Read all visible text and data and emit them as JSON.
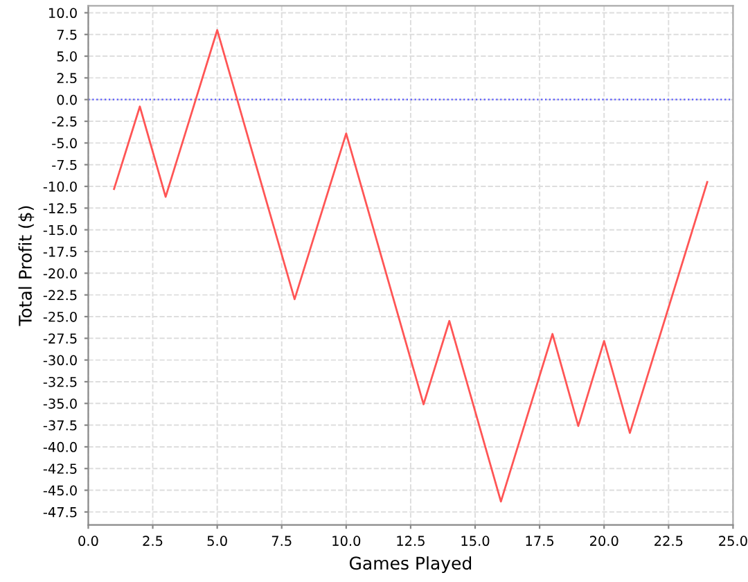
{
  "chart_data": {
    "type": "line",
    "xlabel": "Games Played",
    "ylabel": "Total Profit ($)",
    "x": [
      1,
      2,
      3,
      5,
      8,
      10,
      13,
      14,
      16,
      18,
      19,
      20,
      21,
      24
    ],
    "series": [
      {
        "color": "#ff5555",
        "values": [
          -10.3,
          -0.8,
          -11.2,
          8.0,
          -23.0,
          -3.9,
          -35.1,
          -25.5,
          -46.3,
          -27.0,
          -37.6,
          -27.8,
          -38.4,
          -9.5
        ]
      }
    ],
    "xlim": [
      0,
      25
    ],
    "xticks": [
      {
        "value": 0,
        "label": "0.0"
      },
      {
        "value": 2.5,
        "label": "2.5"
      },
      {
        "value": 5,
        "label": "5.0"
      },
      {
        "value": 7.5,
        "label": "7.5"
      },
      {
        "value": 10,
        "label": "10.0"
      },
      {
        "value": 12.5,
        "label": "12.5"
      },
      {
        "value": 15,
        "label": "15.0"
      },
      {
        "value": 17.5,
        "label": "17.5"
      },
      {
        "value": 20,
        "label": "20.0"
      },
      {
        "value": 22.5,
        "label": "22.5"
      },
      {
        "value": 25,
        "label": "25.0"
      }
    ],
    "ylim": [
      -49,
      10.8
    ],
    "yticks": [
      {
        "value": 10,
        "label": "10.0"
      },
      {
        "value": 7.5,
        "label": "7.5"
      },
      {
        "value": 5,
        "label": "5.0"
      },
      {
        "value": 2.5,
        "label": "2.5"
      },
      {
        "value": 0,
        "label": "0.0"
      },
      {
        "value": -2.5,
        "label": "-2.5"
      },
      {
        "value": -5,
        "label": "-5.0"
      },
      {
        "value": -7.5,
        "label": "-7.5"
      },
      {
        "value": -10,
        "label": "-10.0"
      },
      {
        "value": -12.5,
        "label": "-12.5"
      },
      {
        "value": -15,
        "label": "-15.0"
      },
      {
        "value": -17.5,
        "label": "-17.5"
      },
      {
        "value": -20,
        "label": "-20.0"
      },
      {
        "value": -22.5,
        "label": "-22.5"
      },
      {
        "value": -25,
        "label": "-25.0"
      },
      {
        "value": -27.5,
        "label": "-27.5"
      },
      {
        "value": -30,
        "label": "-30.0"
      },
      {
        "value": -32.5,
        "label": "-32.5"
      },
      {
        "value": -35,
        "label": "-35.0"
      },
      {
        "value": -37.5,
        "label": "-37.5"
      },
      {
        "value": -40,
        "label": "-40.0"
      },
      {
        "value": -42.5,
        "label": "-42.5"
      },
      {
        "value": -45,
        "label": "-45.0"
      },
      {
        "value": -47.5,
        "label": "-47.5"
      }
    ],
    "ref_lines": [
      {
        "axis": "y",
        "value": 0,
        "color": "#5555ff",
        "line_style": "dotted"
      }
    ],
    "grid": true,
    "marker": "none",
    "line_style": "solid",
    "legend": false
  }
}
